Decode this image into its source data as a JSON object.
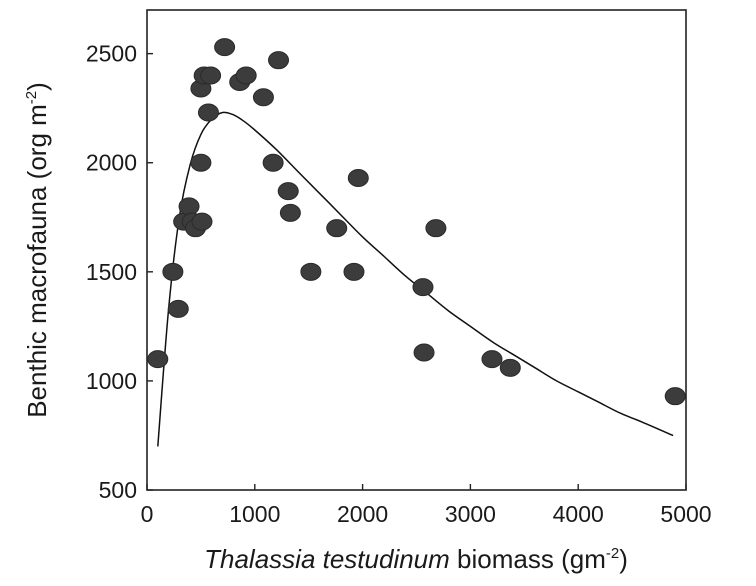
{
  "chart_data": {
    "type": "scatter",
    "title": "",
    "xlabel": {
      "italic": "Thalassia testudinum",
      "rest": " biomass (gm",
      "sup": "-2",
      "close": ")"
    },
    "ylabel": {
      "main": "Benthic macrofauna (org m",
      "sup": "-2",
      "close": ")"
    },
    "xlim": [
      0,
      5000
    ],
    "ylim": [
      500,
      2700
    ],
    "xticks": [
      0,
      1000,
      2000,
      3000,
      4000,
      5000
    ],
    "yticks": [
      500,
      1000,
      1500,
      2000,
      2500
    ],
    "xtick_labels": [
      "0",
      "1000",
      "2000",
      "3000",
      "4000",
      "5000"
    ],
    "ytick_labels": [
      "500",
      "1000",
      "1500",
      "2000",
      "2500"
    ],
    "grid": false,
    "legend": "none",
    "marker_color": "#3c3c3c",
    "points": [
      {
        "x": 100,
        "y": 1100
      },
      {
        "x": 240,
        "y": 1500
      },
      {
        "x": 290,
        "y": 1330
      },
      {
        "x": 340,
        "y": 1730
      },
      {
        "x": 390,
        "y": 1800
      },
      {
        "x": 420,
        "y": 1730
      },
      {
        "x": 450,
        "y": 1700
      },
      {
        "x": 500,
        "y": 2000
      },
      {
        "x": 510,
        "y": 1730
      },
      {
        "x": 500,
        "y": 2340
      },
      {
        "x": 530,
        "y": 2400
      },
      {
        "x": 590,
        "y": 2400
      },
      {
        "x": 570,
        "y": 2230
      },
      {
        "x": 720,
        "y": 2530
      },
      {
        "x": 860,
        "y": 2370
      },
      {
        "x": 920,
        "y": 2400
      },
      {
        "x": 1080,
        "y": 2300
      },
      {
        "x": 1170,
        "y": 2000
      },
      {
        "x": 1220,
        "y": 2470
      },
      {
        "x": 1310,
        "y": 1870
      },
      {
        "x": 1330,
        "y": 1770
      },
      {
        "x": 1520,
        "y": 1500
      },
      {
        "x": 1760,
        "y": 1700
      },
      {
        "x": 1920,
        "y": 1500
      },
      {
        "x": 1960,
        "y": 1930
      },
      {
        "x": 2560,
        "y": 1430
      },
      {
        "x": 2570,
        "y": 1130
      },
      {
        "x": 2680,
        "y": 1700
      },
      {
        "x": 3200,
        "y": 1100
      },
      {
        "x": 3370,
        "y": 1060
      },
      {
        "x": 4900,
        "y": 930
      }
    ],
    "fit_curve": {
      "name": "",
      "x": [
        100,
        200,
        300,
        400,
        500,
        600,
        700,
        800,
        900,
        1000,
        1200,
        1400,
        1600,
        1800,
        2000,
        2200,
        2400,
        2600,
        2800,
        3000,
        3200,
        3400,
        3600,
        3800,
        4000,
        4200,
        4400,
        4600,
        4880
      ],
      "y": [
        700,
        1330,
        1750,
        1990,
        2130,
        2200,
        2230,
        2220,
        2190,
        2150,
        2060,
        1960,
        1860,
        1760,
        1660,
        1570,
        1480,
        1400,
        1320,
        1250,
        1180,
        1120,
        1060,
        1000,
        950,
        900,
        850,
        810,
        750
      ]
    }
  }
}
